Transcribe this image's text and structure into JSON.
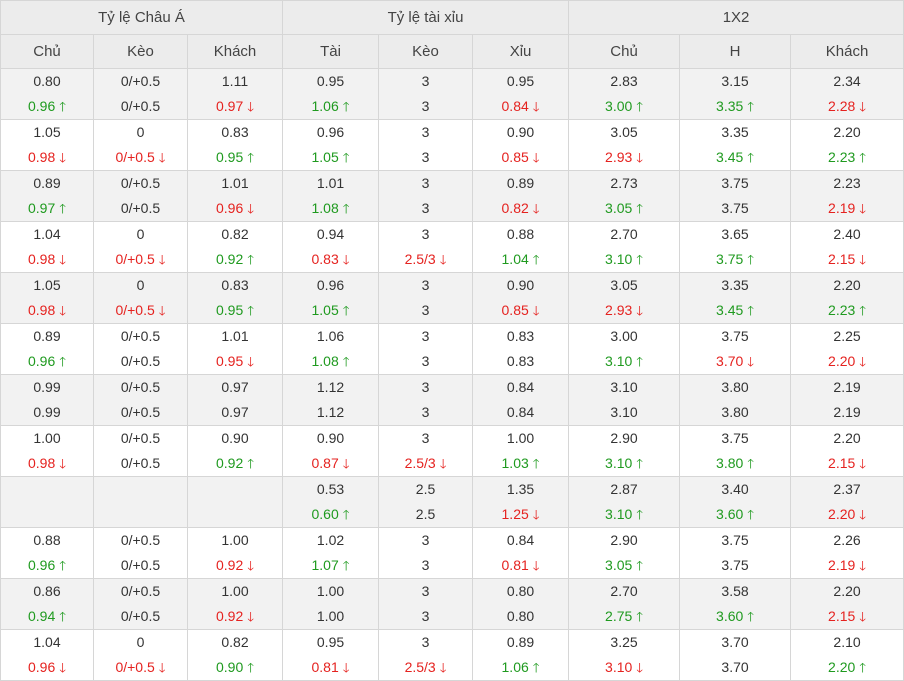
{
  "headers": {
    "groups": [
      "Tỷ lệ Châu Á",
      "Tỷ lệ tài xỉu",
      "1X2"
    ],
    "columns": [
      "Chủ",
      "Kèo",
      "Khách",
      "Tài",
      "Kèo",
      "Xỉu",
      "Chủ",
      "H",
      "Khách"
    ]
  },
  "arrow_glyphs": {
    "up": "🡑",
    "down": "🡓"
  },
  "colors": {
    "up": "#1f9a1f",
    "down": "#e5221f"
  },
  "rows": [
    {
      "shade": true,
      "cells": [
        [
          {
            "v": "0.80"
          },
          {
            "v": "0.96",
            "d": "up"
          }
        ],
        [
          {
            "v": "0/+0.5"
          },
          {
            "v": "0/+0.5"
          }
        ],
        [
          {
            "v": "1.11"
          },
          {
            "v": "0.97",
            "d": "down"
          }
        ],
        [
          {
            "v": "0.95"
          },
          {
            "v": "1.06",
            "d": "up"
          }
        ],
        [
          {
            "v": "3"
          },
          {
            "v": "3"
          }
        ],
        [
          {
            "v": "0.95"
          },
          {
            "v": "0.84",
            "d": "down"
          }
        ],
        [
          {
            "v": "2.83"
          },
          {
            "v": "3.00",
            "d": "up"
          }
        ],
        [
          {
            "v": "3.15"
          },
          {
            "v": "3.35",
            "d": "up"
          }
        ],
        [
          {
            "v": "2.34"
          },
          {
            "v": "2.28",
            "d": "down"
          }
        ]
      ]
    },
    {
      "shade": false,
      "cells": [
        [
          {
            "v": "1.05"
          },
          {
            "v": "0.98",
            "d": "down"
          }
        ],
        [
          {
            "v": "0"
          },
          {
            "v": "0/+0.5",
            "d": "down"
          }
        ],
        [
          {
            "v": "0.83"
          },
          {
            "v": "0.95",
            "d": "up"
          }
        ],
        [
          {
            "v": "0.96"
          },
          {
            "v": "1.05",
            "d": "up"
          }
        ],
        [
          {
            "v": "3"
          },
          {
            "v": "3"
          }
        ],
        [
          {
            "v": "0.90"
          },
          {
            "v": "0.85",
            "d": "down"
          }
        ],
        [
          {
            "v": "3.05"
          },
          {
            "v": "2.93",
            "d": "down"
          }
        ],
        [
          {
            "v": "3.35"
          },
          {
            "v": "3.45",
            "d": "up"
          }
        ],
        [
          {
            "v": "2.20"
          },
          {
            "v": "2.23",
            "d": "up"
          }
        ]
      ]
    },
    {
      "shade": true,
      "cells": [
        [
          {
            "v": "0.89"
          },
          {
            "v": "0.97",
            "d": "up"
          }
        ],
        [
          {
            "v": "0/+0.5"
          },
          {
            "v": "0/+0.5"
          }
        ],
        [
          {
            "v": "1.01"
          },
          {
            "v": "0.96",
            "d": "down"
          }
        ],
        [
          {
            "v": "1.01"
          },
          {
            "v": "1.08",
            "d": "up"
          }
        ],
        [
          {
            "v": "3"
          },
          {
            "v": "3"
          }
        ],
        [
          {
            "v": "0.89"
          },
          {
            "v": "0.82",
            "d": "down"
          }
        ],
        [
          {
            "v": "2.73"
          },
          {
            "v": "3.05",
            "d": "up"
          }
        ],
        [
          {
            "v": "3.75"
          },
          {
            "v": "3.75"
          }
        ],
        [
          {
            "v": "2.23"
          },
          {
            "v": "2.19",
            "d": "down"
          }
        ]
      ]
    },
    {
      "shade": false,
      "cells": [
        [
          {
            "v": "1.04"
          },
          {
            "v": "0.98",
            "d": "down"
          }
        ],
        [
          {
            "v": "0"
          },
          {
            "v": "0/+0.5",
            "d": "down"
          }
        ],
        [
          {
            "v": "0.82"
          },
          {
            "v": "0.92",
            "d": "up"
          }
        ],
        [
          {
            "v": "0.94"
          },
          {
            "v": "0.83",
            "d": "down"
          }
        ],
        [
          {
            "v": "3"
          },
          {
            "v": "2.5/3",
            "d": "down"
          }
        ],
        [
          {
            "v": "0.88"
          },
          {
            "v": "1.04",
            "d": "up"
          }
        ],
        [
          {
            "v": "2.70"
          },
          {
            "v": "3.10",
            "d": "up"
          }
        ],
        [
          {
            "v": "3.65"
          },
          {
            "v": "3.75",
            "d": "up"
          }
        ],
        [
          {
            "v": "2.40"
          },
          {
            "v": "2.15",
            "d": "down"
          }
        ]
      ]
    },
    {
      "shade": true,
      "cells": [
        [
          {
            "v": "1.05"
          },
          {
            "v": "0.98",
            "d": "down"
          }
        ],
        [
          {
            "v": "0"
          },
          {
            "v": "0/+0.5",
            "d": "down"
          }
        ],
        [
          {
            "v": "0.83"
          },
          {
            "v": "0.95",
            "d": "up"
          }
        ],
        [
          {
            "v": "0.96"
          },
          {
            "v": "1.05",
            "d": "up"
          }
        ],
        [
          {
            "v": "3"
          },
          {
            "v": "3"
          }
        ],
        [
          {
            "v": "0.90"
          },
          {
            "v": "0.85",
            "d": "down"
          }
        ],
        [
          {
            "v": "3.05"
          },
          {
            "v": "2.93",
            "d": "down"
          }
        ],
        [
          {
            "v": "3.35"
          },
          {
            "v": "3.45",
            "d": "up"
          }
        ],
        [
          {
            "v": "2.20"
          },
          {
            "v": "2.23",
            "d": "up"
          }
        ]
      ]
    },
    {
      "shade": false,
      "cells": [
        [
          {
            "v": "0.89"
          },
          {
            "v": "0.96",
            "d": "up"
          }
        ],
        [
          {
            "v": "0/+0.5"
          },
          {
            "v": "0/+0.5"
          }
        ],
        [
          {
            "v": "1.01"
          },
          {
            "v": "0.95",
            "d": "down"
          }
        ],
        [
          {
            "v": "1.06"
          },
          {
            "v": "1.08",
            "d": "up"
          }
        ],
        [
          {
            "v": "3"
          },
          {
            "v": "3"
          }
        ],
        [
          {
            "v": "0.83"
          },
          {
            "v": "0.83"
          }
        ],
        [
          {
            "v": "3.00"
          },
          {
            "v": "3.10",
            "d": "up"
          }
        ],
        [
          {
            "v": "3.75"
          },
          {
            "v": "3.70",
            "d": "down"
          }
        ],
        [
          {
            "v": "2.25"
          },
          {
            "v": "2.20",
            "d": "down"
          }
        ]
      ]
    },
    {
      "shade": true,
      "cells": [
        [
          {
            "v": "0.99"
          },
          {
            "v": "0.99"
          }
        ],
        [
          {
            "v": "0/+0.5"
          },
          {
            "v": "0/+0.5"
          }
        ],
        [
          {
            "v": "0.97"
          },
          {
            "v": "0.97"
          }
        ],
        [
          {
            "v": "1.12"
          },
          {
            "v": "1.12"
          }
        ],
        [
          {
            "v": "3"
          },
          {
            "v": "3"
          }
        ],
        [
          {
            "v": "0.84"
          },
          {
            "v": "0.84"
          }
        ],
        [
          {
            "v": "3.10"
          },
          {
            "v": "3.10"
          }
        ],
        [
          {
            "v": "3.80"
          },
          {
            "v": "3.80"
          }
        ],
        [
          {
            "v": "2.19"
          },
          {
            "v": "2.19"
          }
        ]
      ]
    },
    {
      "shade": false,
      "cells": [
        [
          {
            "v": "1.00"
          },
          {
            "v": "0.98",
            "d": "down"
          }
        ],
        [
          {
            "v": "0/+0.5"
          },
          {
            "v": "0/+0.5"
          }
        ],
        [
          {
            "v": "0.90"
          },
          {
            "v": "0.92",
            "d": "up"
          }
        ],
        [
          {
            "v": "0.90"
          },
          {
            "v": "0.87",
            "d": "down"
          }
        ],
        [
          {
            "v": "3"
          },
          {
            "v": "2.5/3",
            "d": "down"
          }
        ],
        [
          {
            "v": "1.00"
          },
          {
            "v": "1.03",
            "d": "up"
          }
        ],
        [
          {
            "v": "2.90"
          },
          {
            "v": "3.10",
            "d": "up"
          }
        ],
        [
          {
            "v": "3.75"
          },
          {
            "v": "3.80",
            "d": "up"
          }
        ],
        [
          {
            "v": "2.20"
          },
          {
            "v": "2.15",
            "d": "down"
          }
        ]
      ]
    },
    {
      "shade": true,
      "cells": [
        [
          {
            "v": ""
          },
          {
            "v": ""
          }
        ],
        [
          {
            "v": ""
          },
          {
            "v": ""
          }
        ],
        [
          {
            "v": ""
          },
          {
            "v": ""
          }
        ],
        [
          {
            "v": "0.53"
          },
          {
            "v": "0.60",
            "d": "up"
          }
        ],
        [
          {
            "v": "2.5"
          },
          {
            "v": "2.5"
          }
        ],
        [
          {
            "v": "1.35"
          },
          {
            "v": "1.25",
            "d": "down"
          }
        ],
        [
          {
            "v": "2.87"
          },
          {
            "v": "3.10",
            "d": "up"
          }
        ],
        [
          {
            "v": "3.40"
          },
          {
            "v": "3.60",
            "d": "up"
          }
        ],
        [
          {
            "v": "2.37"
          },
          {
            "v": "2.20",
            "d": "down"
          }
        ]
      ]
    },
    {
      "shade": false,
      "cells": [
        [
          {
            "v": "0.88"
          },
          {
            "v": "0.96",
            "d": "up"
          }
        ],
        [
          {
            "v": "0/+0.5"
          },
          {
            "v": "0/+0.5"
          }
        ],
        [
          {
            "v": "1.00"
          },
          {
            "v": "0.92",
            "d": "down"
          }
        ],
        [
          {
            "v": "1.02"
          },
          {
            "v": "1.07",
            "d": "up"
          }
        ],
        [
          {
            "v": "3"
          },
          {
            "v": "3"
          }
        ],
        [
          {
            "v": "0.84"
          },
          {
            "v": "0.81",
            "d": "down"
          }
        ],
        [
          {
            "v": "2.90"
          },
          {
            "v": "3.05",
            "d": "up"
          }
        ],
        [
          {
            "v": "3.75"
          },
          {
            "v": "3.75"
          }
        ],
        [
          {
            "v": "2.26"
          },
          {
            "v": "2.19",
            "d": "down"
          }
        ]
      ]
    },
    {
      "shade": true,
      "cells": [
        [
          {
            "v": "0.86"
          },
          {
            "v": "0.94",
            "d": "up"
          }
        ],
        [
          {
            "v": "0/+0.5"
          },
          {
            "v": "0/+0.5"
          }
        ],
        [
          {
            "v": "1.00"
          },
          {
            "v": "0.92",
            "d": "down"
          }
        ],
        [
          {
            "v": "1.00"
          },
          {
            "v": "1.00"
          }
        ],
        [
          {
            "v": "3"
          },
          {
            "v": "3"
          }
        ],
        [
          {
            "v": "0.80"
          },
          {
            "v": "0.80"
          }
        ],
        [
          {
            "v": "2.70"
          },
          {
            "v": "2.75",
            "d": "up"
          }
        ],
        [
          {
            "v": "3.58"
          },
          {
            "v": "3.60",
            "d": "up"
          }
        ],
        [
          {
            "v": "2.20"
          },
          {
            "v": "2.15",
            "d": "down"
          }
        ]
      ]
    },
    {
      "shade": false,
      "cells": [
        [
          {
            "v": "1.04"
          },
          {
            "v": "0.96",
            "d": "down"
          }
        ],
        [
          {
            "v": "0"
          },
          {
            "v": "0/+0.5",
            "d": "down"
          }
        ],
        [
          {
            "v": "0.82"
          },
          {
            "v": "0.90",
            "d": "up"
          }
        ],
        [
          {
            "v": "0.95"
          },
          {
            "v": "0.81",
            "d": "down"
          }
        ],
        [
          {
            "v": "3"
          },
          {
            "v": "2.5/3",
            "d": "down"
          }
        ],
        [
          {
            "v": "0.89"
          },
          {
            "v": "1.06",
            "d": "up"
          }
        ],
        [
          {
            "v": "3.25"
          },
          {
            "v": "3.10",
            "d": "down"
          }
        ],
        [
          {
            "v": "3.70"
          },
          {
            "v": "3.70"
          }
        ],
        [
          {
            "v": "2.10"
          },
          {
            "v": "2.20",
            "d": "up"
          }
        ]
      ]
    }
  ]
}
